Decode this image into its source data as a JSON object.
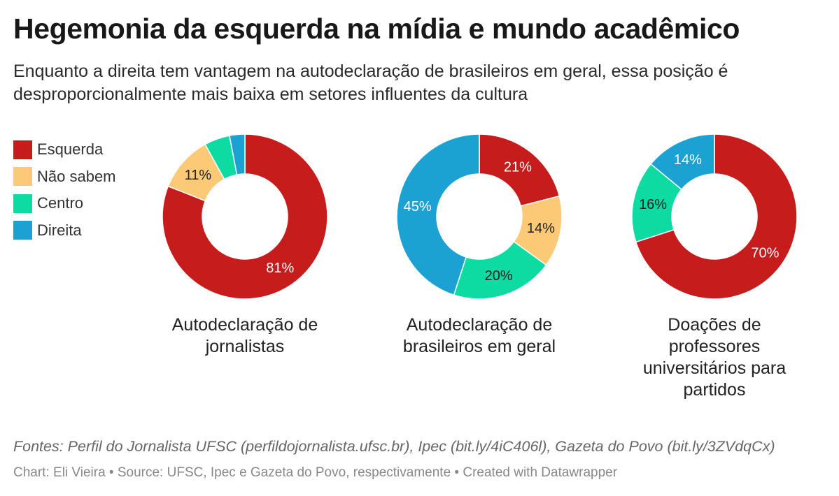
{
  "title": "Hegemonia da esquerda na mídia e mundo acadêmico",
  "subtitle": "Enquanto a direita tem vantagem na autodeclaração de brasileiros em geral, essa posição é desproporcionalmente mais baixa em setores influentes da cultura",
  "chart_data": {
    "type": "pie",
    "variant": "donut",
    "legend": [
      {
        "name": "Esquerda",
        "color": "#c71c1c"
      },
      {
        "name": "Não sabem",
        "color": "#fcc977"
      },
      {
        "name": "Centro",
        "color": "#0ddba1"
      },
      {
        "name": "Direita",
        "color": "#1ca2d2"
      }
    ],
    "charts": [
      {
        "caption": [
          "Autodeclaração de",
          "jornalistas"
        ],
        "slices": [
          {
            "name": "Esquerda",
            "value": 81,
            "label": "81%"
          },
          {
            "name": "Não sabem",
            "value": 11,
            "label": "11%"
          },
          {
            "name": "Centro",
            "value": 5,
            "label": ""
          },
          {
            "name": "Direita",
            "value": 3,
            "label": ""
          }
        ]
      },
      {
        "caption": [
          "Autodeclaração de",
          "brasileiros em geral"
        ],
        "slices": [
          {
            "name": "Esquerda",
            "value": 21,
            "label": "21%"
          },
          {
            "name": "Não sabem",
            "value": 14,
            "label": "14%"
          },
          {
            "name": "Centro",
            "value": 20,
            "label": "20%"
          },
          {
            "name": "Direita",
            "value": 45,
            "label": "45%"
          }
        ]
      },
      {
        "caption": [
          "Doações de",
          "professores",
          "universitários para",
          "partidos"
        ],
        "slices": [
          {
            "name": "Esquerda",
            "value": 70,
            "label": "70%"
          },
          {
            "name": "Não sabem",
            "value": 0,
            "label": ""
          },
          {
            "name": "Centro",
            "value": 16,
            "label": "16%"
          },
          {
            "name": "Direita",
            "value": 14,
            "label": "14%"
          }
        ]
      }
    ]
  },
  "notes": "Fontes: Perfil do Jornalista UFSC (perfildojornalista.ufsc.br), Ipec (bit.ly/4iC406l), Gazeta do Povo (bit.ly/3ZVdqCx)",
  "credit": "Chart: Eli Vieira • Source: UFSC, Ipec e Gazeta do Povo, respectivamente • Created with Datawrapper"
}
